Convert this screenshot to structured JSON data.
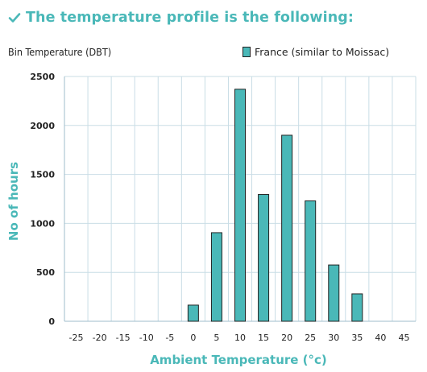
{
  "page": {
    "heading": "The temperature profile is the following:",
    "check_icon": "check-icon",
    "accent_color": "#4ab8b8"
  },
  "chart_data": {
    "type": "bar",
    "title": "Bin Temperature (DBT)",
    "xlabel": "Ambient Temperature (°c)",
    "ylabel": "No of hours",
    "categories": [
      "-25",
      "-20",
      "-15",
      "-10",
      "-5",
      "0",
      "5",
      "10",
      "15",
      "20",
      "25",
      "30",
      "35",
      "40",
      "45"
    ],
    "series": [
      {
        "name": "France (similar to Moissac)",
        "color": "#4ab8b8",
        "values": [
          0,
          0,
          0,
          0,
          0,
          165,
          905,
          2370,
          1295,
          1900,
          1230,
          575,
          280,
          0,
          0
        ]
      }
    ],
    "yticks": [
      0,
      500,
      1000,
      1500,
      2000,
      2500
    ],
    "ylim": [
      0,
      2500
    ],
    "grid": true,
    "legend": "top-right"
  }
}
